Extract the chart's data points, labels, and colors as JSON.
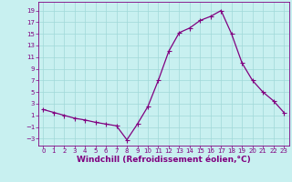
{
  "x": [
    0,
    1,
    2,
    3,
    4,
    5,
    6,
    7,
    8,
    9,
    10,
    11,
    12,
    13,
    14,
    15,
    16,
    17,
    18,
    19,
    20,
    21,
    22,
    23
  ],
  "y": [
    2,
    1.5,
    1,
    0.5,
    0.2,
    -0.2,
    -0.5,
    -0.8,
    -3.2,
    -0.5,
    2.5,
    7,
    12,
    15.2,
    16,
    17.3,
    18,
    19,
    15,
    10,
    7,
    5,
    3.5,
    1.5
  ],
  "line_color": "#800080",
  "marker": "D",
  "marker_size": 1.8,
  "bg_color": "#c8f0f0",
  "grid_color": "#a0d8d8",
  "xlabel": "Windchill (Refroidissement éolien,°C)",
  "xlim": [
    -0.5,
    23.5
  ],
  "ylim": [
    -4.2,
    20.5
  ],
  "yticks": [
    -3,
    -1,
    1,
    3,
    5,
    7,
    9,
    11,
    13,
    15,
    17,
    19
  ],
  "xticks": [
    0,
    1,
    2,
    3,
    4,
    5,
    6,
    7,
    8,
    9,
    10,
    11,
    12,
    13,
    14,
    15,
    16,
    17,
    18,
    19,
    20,
    21,
    22,
    23
  ],
  "tick_color": "#800080",
  "tick_labelsize": 5.0,
  "xlabel_fontsize": 6.5,
  "linewidth": 0.9
}
